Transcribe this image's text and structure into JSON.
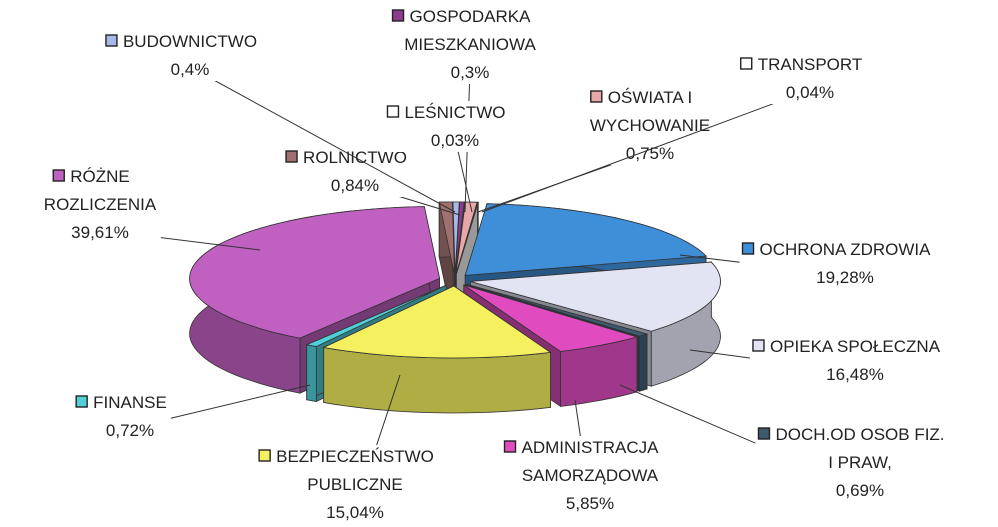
{
  "chart_data": {
    "type": "pie3d",
    "categories": [
      "OCHRONA ZDROWIA",
      "OPIEKA SPOŁECZNA",
      "DOCH.OD OSOB FIZ.\nI PRAW,",
      "ADMINISTRACJA\nSAMORZĄDOWA",
      "BEZPIECZEŃSTWO\nPUBLICZNE",
      "FINANSE",
      "RÓŻNE\nROZLICZENIA",
      "ROLNICTWO",
      "BUDOWNICTWO",
      "GOSPODARKA\nMIESZKANIOWA",
      "LEŚNICTWO",
      "OŚWIATA I\nWYCHOWANIE",
      "TRANSPORT"
    ],
    "values": [
      19.28,
      16.48,
      0.69,
      5.85,
      15.04,
      0.72,
      39.61,
      0.84,
      0.4,
      0.3,
      0.03,
      0.75,
      0.04
    ],
    "value_labels": [
      "19,28%",
      "16,48%",
      "0,69%",
      "5,85%",
      "15,04%",
      "0,72%",
      "39,61%",
      "0,84%",
      "0,4%",
      "0,3%",
      "0,03%",
      "0,75%",
      "0,04%"
    ],
    "colors": [
      "#3f8fd8",
      "#e2e3f3",
      "#3d5a6e",
      "#e04cc0",
      "#f5f060",
      "#50d0d8",
      "#c060c0",
      "#a07070",
      "#a8b8e8",
      "#8c3c8c",
      "#ffffff",
      "#e8a8a8",
      "#ffffff"
    ]
  }
}
